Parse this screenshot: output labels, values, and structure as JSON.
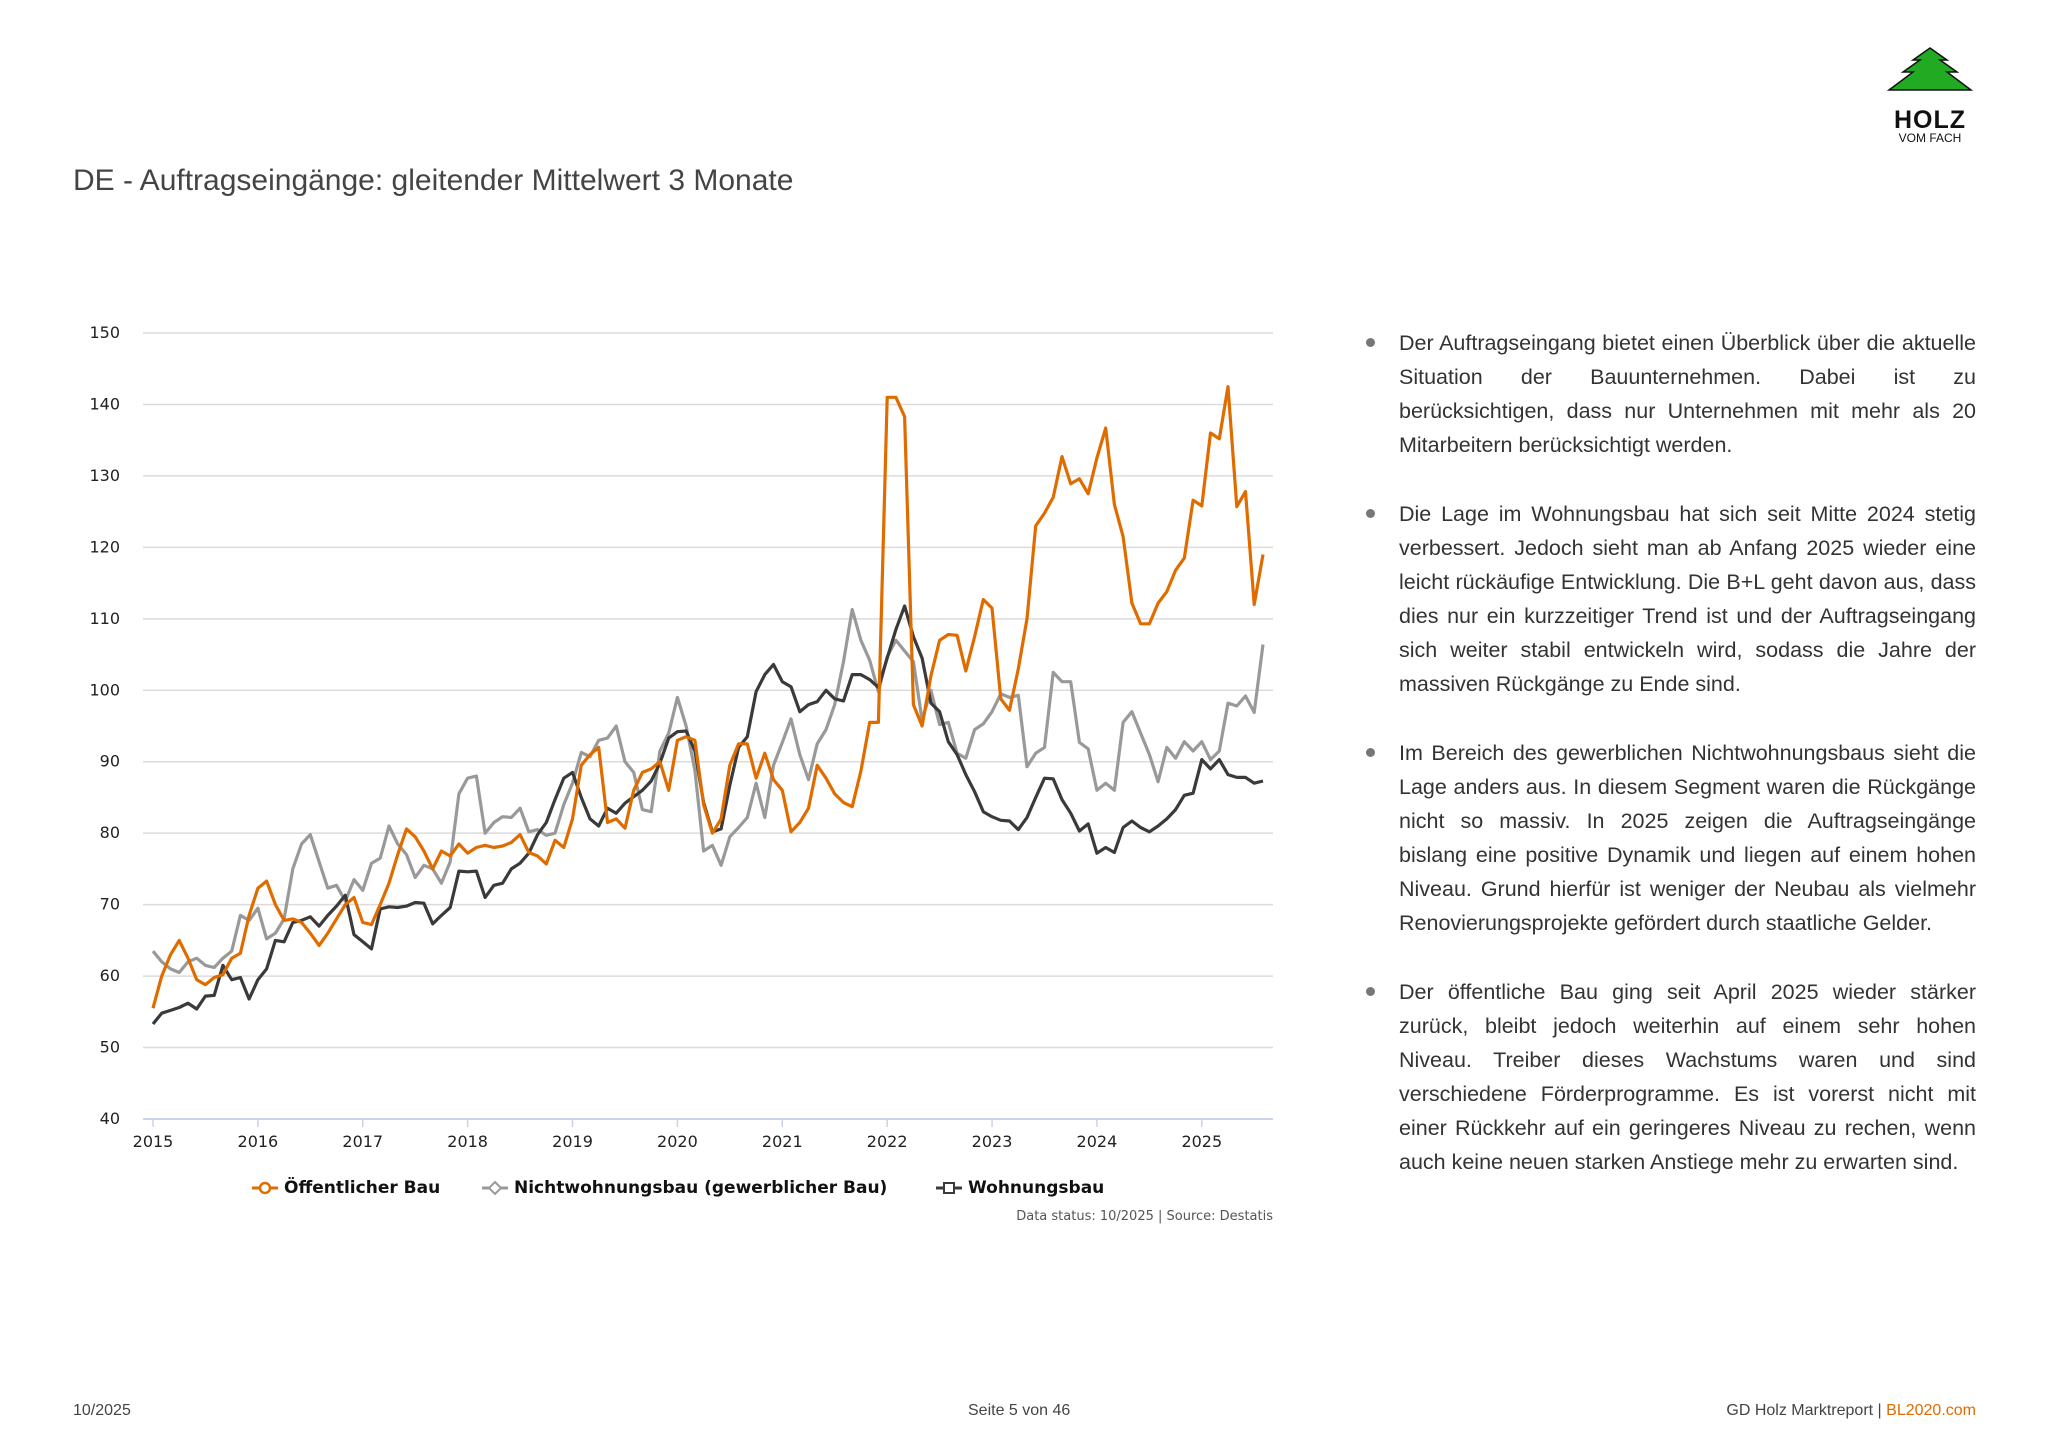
{
  "title": "DE - Auftragseingänge: gleitender Mittelwert 3 Monate",
  "logo": {
    "text_main": "HOLZ",
    "text_sub": "VOM FACH",
    "color": "#22aa22"
  },
  "chart_data": {
    "type": "line",
    "title": "",
    "xlabel": "",
    "ylabel": "",
    "x_start": "2015-01",
    "x_frequency": "monthly",
    "x_ticks": [
      "2015",
      "2016",
      "2017",
      "2018",
      "2019",
      "2020",
      "2021",
      "2022",
      "2023",
      "2024",
      "2025"
    ],
    "ylim": [
      40,
      150
    ],
    "y_ticks": [
      40,
      50,
      60,
      70,
      80,
      90,
      100,
      110,
      120,
      130,
      140,
      150
    ],
    "grid": true,
    "legend_position": "bottom",
    "series": [
      {
        "name": "Öffentlicher Bau",
        "color": "#e06c00",
        "marker": "circle",
        "values": [
          55.5,
          60,
          63,
          65,
          62.5,
          59.5,
          58.8,
          59.8,
          60.2,
          62.5,
          63.2,
          68.5,
          72.3,
          73.3,
          70,
          67.8,
          68,
          67.5,
          66,
          64.3,
          66,
          68,
          70,
          71,
          67.5,
          67.2,
          70,
          73,
          77,
          80.6,
          79.5,
          77.5,
          75,
          77.5,
          76.8,
          78.5,
          77.2,
          78,
          78.3,
          78,
          78.2,
          78.7,
          79.8,
          77.3,
          76.8,
          75.7,
          79,
          78,
          82,
          89.5,
          91,
          92,
          81.5,
          82,
          80.7,
          86,
          88.5,
          89,
          90,
          86,
          93,
          93.5,
          93,
          84,
          80,
          82,
          89.5,
          92.5,
          92.5,
          87.7,
          91.2,
          87.5,
          86,
          80.2,
          81.5,
          83.5,
          89.5,
          87.7,
          85.5,
          84.3,
          83.7,
          88.7,
          95.5,
          95.5,
          141,
          141,
          138.3,
          98,
          95,
          102,
          107,
          107.8,
          107.7,
          102.7,
          107.5,
          112.7,
          111.5,
          98.8,
          97.2,
          103,
          110,
          123,
          124.8,
          127,
          132.7,
          128.9,
          129.6,
          127.5,
          132.5,
          136.7,
          126,
          121.5,
          112.2,
          109.3,
          109.3,
          112.2,
          113.8,
          116.8,
          118.5,
          126.6,
          125.8,
          136,
          135.2,
          142.5,
          125.7,
          127.8,
          112,
          119
        ]
      },
      {
        "name": "Nichtwohnungsbau (gewerblicher Bau)",
        "color": "#999999",
        "marker": "diamond",
        "values": [
          63.5,
          62,
          61,
          60.5,
          62,
          62.5,
          61.5,
          61.2,
          62.5,
          63.5,
          68.5,
          67.8,
          69.5,
          65.2,
          66,
          68,
          75,
          78.5,
          79.8,
          76,
          72.3,
          72.7,
          70.5,
          73.5,
          72,
          75.8,
          76.5,
          81,
          78.5,
          77,
          73.8,
          75.5,
          75,
          73,
          76,
          85.5,
          87.7,
          88,
          80,
          81.5,
          82.3,
          82.2,
          83.5,
          80.2,
          80.5,
          79.7,
          80,
          84,
          87,
          91.3,
          90.7,
          93,
          93.3,
          95,
          90,
          88.5,
          83.3,
          83,
          91.5,
          94,
          99,
          95,
          88.8,
          77.5,
          78.3,
          75.5,
          79.5,
          80.8,
          82.2,
          87,
          82.2,
          89.5,
          92.7,
          96,
          91,
          87.5,
          92.5,
          94.5,
          98,
          104,
          111.3,
          107,
          104.2,
          99.8,
          104.7,
          107,
          105.5,
          104,
          95.8,
          100,
          95.2,
          95.5,
          91.2,
          90.5,
          94.5,
          95.3,
          97,
          99.5,
          99,
          99.3,
          89.3,
          91.2,
          92,
          102.5,
          101.2,
          101.2,
          92.7,
          91.8,
          86,
          87,
          86,
          95.5,
          97,
          94,
          91,
          87.2,
          92,
          90.5,
          92.8,
          91.5,
          92.8,
          90.3,
          91.5,
          98.2,
          97.8,
          99.2,
          96.9,
          106.4
        ]
      },
      {
        "name": "Wohnungsbau",
        "color": "#3a3a3a",
        "marker": "square",
        "values": [
          53.3,
          54.8,
          55.2,
          55.6,
          56.2,
          55.4,
          57.2,
          57.3,
          61.5,
          59.5,
          59.8,
          56.8,
          59.5,
          61,
          65,
          64.8,
          67.5,
          67.8,
          68.3,
          67,
          68.5,
          69.8,
          71.3,
          65.8,
          64.8,
          63.8,
          69.4,
          69.7,
          69.6,
          69.8,
          70.3,
          70.2,
          67.3,
          68.5,
          69.6,
          74.7,
          74.6,
          74.7,
          71,
          72.7,
          73,
          75,
          75.8,
          77.2,
          79.8,
          81.5,
          84.7,
          87.7,
          88.5,
          85,
          82,
          81,
          83.5,
          82.8,
          84.2,
          85.1,
          86,
          87.3,
          89.8,
          93.3,
          94.2,
          94.3,
          91.5,
          84.3,
          80.2,
          80.6,
          86.7,
          92,
          93.5,
          99.8,
          102.2,
          103.6,
          101.2,
          100.5,
          97,
          98,
          98.4,
          100,
          98.8,
          98.5,
          102.2,
          102.2,
          101.5,
          100.4,
          104.5,
          108.5,
          111.8,
          107.5,
          104.5,
          98.2,
          97,
          92.8,
          91,
          88.2,
          85.8,
          83,
          82.3,
          81.8,
          81.7,
          80.5,
          82.2,
          85,
          87.7,
          87.6,
          84.7,
          82.8,
          80.3,
          81.3,
          77.2,
          78,
          77.3,
          80.8,
          81.7,
          80.8,
          80.2,
          81,
          82,
          83.3,
          85.3,
          85.6,
          90.3,
          89,
          90.3,
          88.2,
          87.8,
          87.8,
          87,
          87.3
        ]
      }
    ]
  },
  "source_note": "Data status: 10/2025 | Source: Destatis",
  "bullets": [
    "Der Auftragseingang bietet einen Überblick über die aktuelle Situation der Bauunternehmen. Dabei ist zu berücksichtigen, dass nur Unternehmen mit mehr als 20 Mitarbeitern berücksichtigt werden.",
    "Die Lage im Wohnungsbau hat sich seit Mitte 2024 stetig verbessert. Jedoch sieht man ab Anfang 2025 wieder eine leicht rückäufige Entwicklung. Die B+L geht davon aus, dass dies nur ein kurzzeitiger Trend ist und der Auftragseingang sich weiter stabil entwickeln wird, sodass die Jahre der massiven Rückgänge zu Ende sind.",
    "Im Bereich des gewerblichen Nichtwohnungsbaus sieht die Lage anders aus. In diesem Segment waren die Rückgänge nicht so massiv. In 2025 zeigen die Auftragseingänge bislang eine positive Dynamik und liegen auf einem hohen Niveau. Grund hierfür ist weniger der Neubau als vielmehr Renovierungsprojekte gefördert durch staatliche Gelder.",
    "Der öffentliche Bau ging seit April 2025 wieder stärker zurück, bleibt jedoch weiterhin auf einem sehr hohen Niveau. Treiber dieses Wachstums waren und sind verschiedene Förderprogramme. Es ist vorerst nicht mit einer Rückkehr auf ein geringeres Niveau zu rechen, wenn auch keine neuen starken Anstiege mehr zu erwarten sind."
  ],
  "footer": {
    "date": "10/2025",
    "page": "Seite 5 von 46",
    "report": "GD Holz Marktreport | ",
    "site": "BL2020.com",
    "accent": "#e06c00"
  }
}
